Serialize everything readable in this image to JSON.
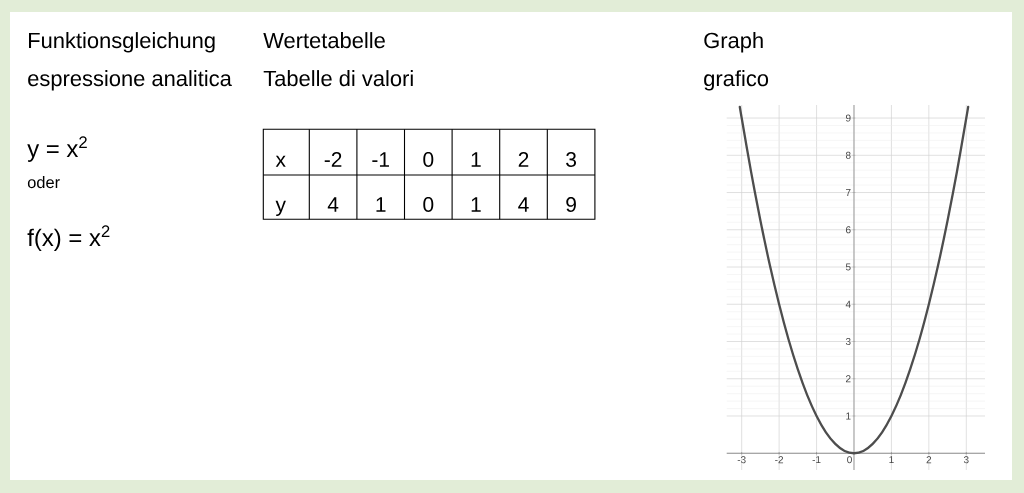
{
  "chart_data": [
    {
      "type": "other",
      "title": "Funktionsgleichung",
      "subtitle": "espressione analitica",
      "annotations": [
        "y = x$^{2}$",
        "oder",
        "f(x) = x$^{2}$"
      ]
    },
    {
      "type": "other",
      "title": "Wertetabelle",
      "subtitle": "Tabelle di valori",
      "xlabel": "x",
      "ylabel": "y",
      "categories": [
        "-2",
        "-1",
        "0",
        "1",
        "2",
        "3"
      ],
      "values": [
        4,
        1,
        0,
        1,
        4,
        9
      ],
      "data_labels": true
    },
    {
      "type": "line",
      "title": "Graph",
      "subtitle": "grafico",
      "x": [
        -3.05,
        -3,
        -2.75,
        -2.5,
        -2.25,
        -2,
        -1.75,
        -1.5,
        -1.25,
        -1,
        -0.75,
        -0.5,
        -0.25,
        0,
        0.25,
        0.5,
        0.75,
        1,
        1.25,
        1.5,
        1.75,
        2,
        2.25,
        2.5,
        2.75,
        3,
        3.05
      ],
      "values": [
        9.3,
        9,
        7.56,
        6.25,
        5.06,
        4,
        3.06,
        2.25,
        1.56,
        1,
        0.56,
        0.25,
        0.06,
        0,
        0.06,
        0.25,
        0.56,
        1,
        1.56,
        2.25,
        3.06,
        4,
        5.06,
        6.25,
        7.56,
        9,
        9.3
      ],
      "color": "#4d4d4d",
      "xlim": [
        -3.4,
        3.5
      ],
      "ylim": [
        -0.45,
        9.35
      ],
      "xticks": [
        -3,
        -2,
        -1,
        0,
        1,
        2,
        3
      ],
      "yticks": [
        1,
        2,
        3,
        4,
        5,
        6,
        7,
        8,
        9
      ],
      "grid": true
    }
  ]
}
